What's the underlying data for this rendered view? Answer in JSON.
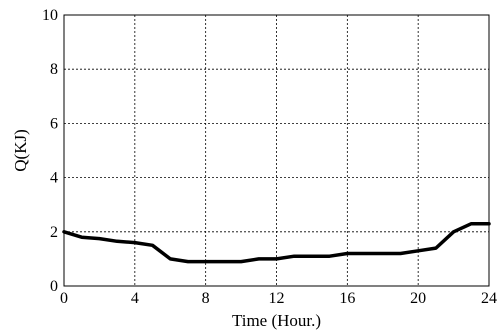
{
  "chart_data": {
    "type": "line",
    "title": "",
    "xlabel": "Time (Hour.)",
    "ylabel": "Q(KJ)",
    "xlim": [
      0,
      24
    ],
    "ylim": [
      0,
      10
    ],
    "xticks": [
      0,
      4,
      8,
      12,
      16,
      20,
      24
    ],
    "yticks": [
      0,
      2,
      4,
      6,
      8,
      10
    ],
    "grid": true,
    "series": [
      {
        "x": [
          0,
          1,
          2,
          3,
          4,
          5,
          6,
          7,
          8,
          9,
          10,
          11,
          12,
          13,
          14,
          15,
          16,
          17,
          18,
          19,
          20,
          21,
          22,
          23,
          24
        ],
        "y": [
          2.0,
          1.8,
          1.75,
          1.65,
          1.6,
          1.5,
          1.0,
          0.9,
          0.9,
          0.9,
          0.9,
          1.0,
          1.0,
          1.1,
          1.1,
          1.1,
          1.2,
          1.2,
          1.2,
          1.2,
          1.3,
          1.4,
          2.0,
          2.3,
          2.3
        ]
      }
    ]
  }
}
